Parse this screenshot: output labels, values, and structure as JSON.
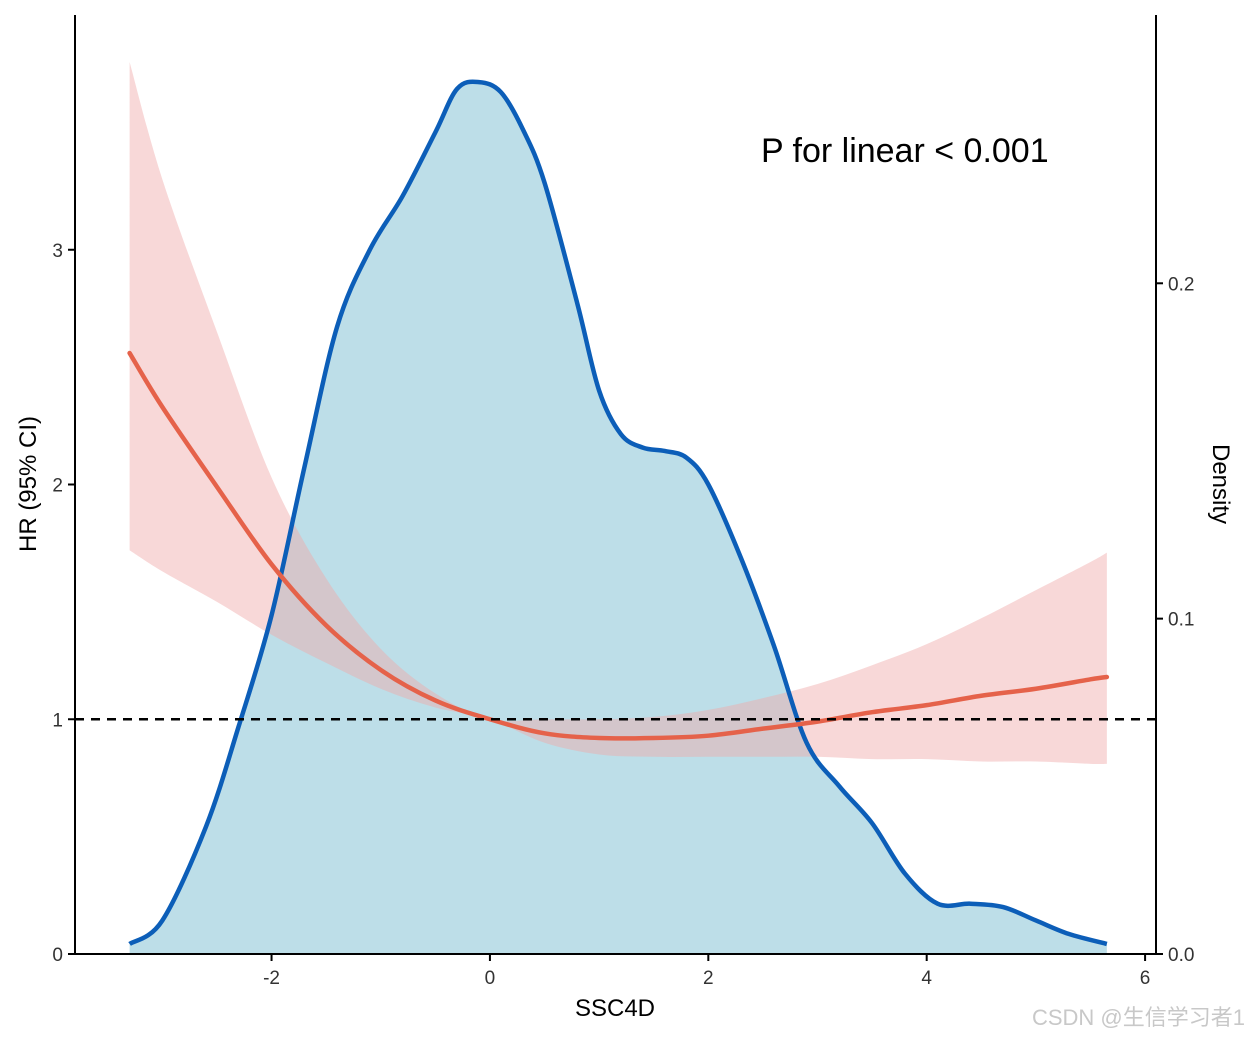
{
  "chart_data": {
    "type": "line",
    "title": "",
    "xlabel": "SSC4D",
    "ylabel": "HR (95% CI)",
    "y2label": "Density",
    "annotation": "P for linear < 0.001",
    "xlim": [
      -3.8,
      6.1
    ],
    "ylim": [
      0,
      4.0
    ],
    "y2lim": [
      0,
      0.28
    ],
    "x_ticks": [
      "-2",
      "0",
      "2",
      "4",
      "6"
    ],
    "y_ticks": [
      "0",
      "1",
      "2",
      "3"
    ],
    "y2_ticks": [
      "0.0",
      "0.1",
      "0.2"
    ],
    "reference_line": {
      "y": 1,
      "style": "dashed"
    },
    "grid": false,
    "series": [
      {
        "kind": "hr",
        "x": [
          -3.3,
          -3.0,
          -2.5,
          -2.0,
          -1.5,
          -1.0,
          -0.5,
          0.0,
          0.5,
          1.0,
          1.5,
          2.0,
          2.5,
          3.0,
          3.5,
          4.0,
          4.5,
          5.0,
          5.5,
          5.65
        ],
        "y": [
          2.56,
          2.33,
          1.99,
          1.66,
          1.4,
          1.21,
          1.08,
          1.0,
          0.94,
          0.92,
          0.92,
          0.93,
          0.96,
          0.99,
          1.03,
          1.06,
          1.1,
          1.13,
          1.17,
          1.18
        ],
        "lower": [
          1.72,
          1.63,
          1.5,
          1.36,
          1.24,
          1.13,
          1.05,
          1.0,
          0.9,
          0.85,
          0.84,
          0.84,
          0.84,
          0.84,
          0.83,
          0.83,
          0.82,
          0.82,
          0.81,
          0.81
        ],
        "upper": [
          3.8,
          3.3,
          2.65,
          2.03,
          1.6,
          1.3,
          1.11,
          1.0,
          1.0,
          1.0,
          1.01,
          1.04,
          1.09,
          1.15,
          1.23,
          1.32,
          1.43,
          1.55,
          1.67,
          1.71
        ]
      },
      {
        "kind": "density",
        "x": [
          -3.3,
          -3.0,
          -2.6,
          -2.3,
          -2.0,
          -1.7,
          -1.4,
          -1.1,
          -0.8,
          -0.5,
          -0.3,
          -0.1,
          0.1,
          0.3,
          0.5,
          0.8,
          1.0,
          1.2,
          1.4,
          1.6,
          1.8,
          2.0,
          2.3,
          2.6,
          2.9,
          3.2,
          3.5,
          3.8,
          4.1,
          4.4,
          4.7,
          5.0,
          5.3,
          5.65
        ],
        "y": [
          0.003,
          0.01,
          0.038,
          0.068,
          0.101,
          0.145,
          0.187,
          0.21,
          0.226,
          0.245,
          0.258,
          0.26,
          0.257,
          0.246,
          0.23,
          0.194,
          0.168,
          0.155,
          0.151,
          0.15,
          0.148,
          0.14,
          0.118,
          0.092,
          0.063,
          0.05,
          0.039,
          0.024,
          0.015,
          0.015,
          0.014,
          0.01,
          0.006,
          0.003
        ]
      }
    ]
  },
  "colors": {
    "hr_line": "#E5624A",
    "ci_band": "#F8D5D5",
    "density_line": "#0C5EB8",
    "density_fill": "#BDDEE8",
    "axis": "#000000",
    "reference_line": "#000000"
  },
  "watermark": "CSDN @生信学习者1"
}
